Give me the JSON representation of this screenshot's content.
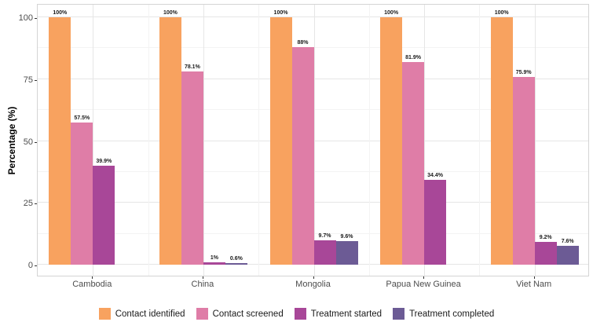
{
  "chart_data": {
    "type": "bar",
    "title": "",
    "xlabel": "",
    "ylabel": "Percentage (%)",
    "ylim": [
      0,
      100
    ],
    "yticks": [
      0,
      25,
      50,
      75,
      100
    ],
    "grid": true,
    "legend_position": "bottom",
    "categories": [
      "Cambodia",
      "China",
      "Mongolia",
      "Papua New Guinea",
      "Viet Nam"
    ],
    "series": [
      {
        "name": "Contact identified",
        "color": "#F8A25F",
        "values": [
          100,
          100,
          100,
          100,
          100
        ],
        "labels": [
          "100%",
          "100%",
          "100%",
          "100%",
          "100%"
        ]
      },
      {
        "name": "Contact screened",
        "color": "#DF7DA7",
        "values": [
          57.5,
          78.1,
          88,
          81.9,
          75.9
        ],
        "labels": [
          "57.5%",
          "78.1%",
          "88%",
          "81.9%",
          "75.9%"
        ]
      },
      {
        "name": "Treatment started",
        "color": "#A84798",
        "values": [
          39.9,
          1,
          9.7,
          34.4,
          9.2
        ],
        "labels": [
          "39.9%",
          "1%",
          "9.7%",
          "34.4%",
          "9.2%"
        ]
      },
      {
        "name": "Treatment completed",
        "color": "#6C5B95",
        "values": [
          null,
          0.6,
          9.6,
          null,
          7.6
        ],
        "labels": [
          null,
          "0.6%",
          "9.6%",
          null,
          "7.6%"
        ]
      }
    ]
  }
}
